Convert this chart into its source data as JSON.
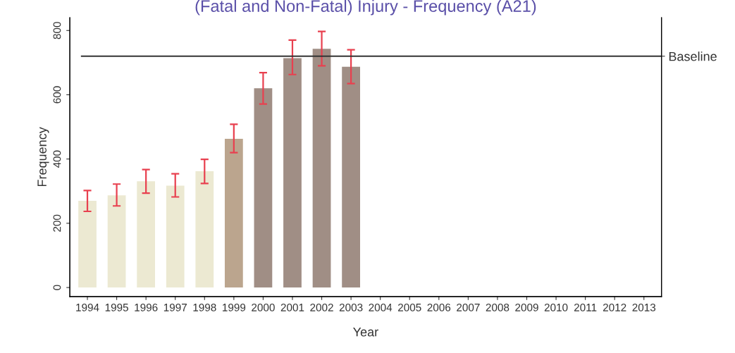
{
  "chart_data": {
    "type": "bar",
    "title": "(Fatal and Non-Fatal) Injury - Frequency (A21)",
    "xlabel": "Year",
    "ylabel": "Frequency",
    "categories": [
      "1994",
      "1995",
      "1996",
      "1997",
      "1998",
      "1999",
      "2000",
      "2001",
      "2002",
      "2003",
      "2004",
      "2005",
      "2006",
      "2007",
      "2008",
      "2009",
      "2010",
      "2011",
      "2012",
      "2013"
    ],
    "values": [
      270,
      287,
      331,
      317,
      362,
      463,
      620,
      714,
      743,
      687,
      null,
      null,
      null,
      null,
      null,
      null,
      null,
      null,
      null,
      null
    ],
    "colors": [
      "#ece9d2",
      "#ece9d2",
      "#ece9d2",
      "#ece9d2",
      "#ece9d2",
      "#bba58e",
      "#a08e85",
      "#a08e85",
      "#a08e85",
      "#a08e85",
      "#a08e85",
      "#a08e85",
      "#a08e85",
      "#a08e85",
      "#a08e85",
      "#a08e85",
      "#a08e85",
      "#a08e85",
      "#a08e85",
      "#a08e85"
    ],
    "errors": [
      [
        237,
        302
      ],
      [
        254,
        322
      ],
      [
        294,
        367
      ],
      [
        282,
        354
      ],
      [
        324,
        399
      ],
      [
        420,
        508
      ],
      [
        571,
        669
      ],
      [
        663,
        770
      ],
      [
        690,
        797
      ],
      [
        635,
        740
      ],
      null,
      null,
      null,
      null,
      null,
      null,
      null,
      null,
      null,
      null
    ],
    "ylim": [
      -28,
      840
    ],
    "yticks": [
      0,
      200,
      400,
      600,
      800
    ],
    "ref_lines": [
      {
        "axis": "y",
        "value": 720,
        "label": "Baseline",
        "color": "#333333"
      }
    ]
  }
}
